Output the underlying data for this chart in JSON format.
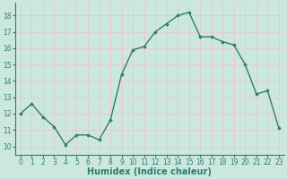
{
  "x": [
    0,
    1,
    2,
    3,
    4,
    5,
    6,
    7,
    8,
    9,
    10,
    11,
    12,
    13,
    14,
    15,
    16,
    17,
    18,
    19,
    20,
    21,
    22,
    23
  ],
  "y": [
    12.0,
    12.6,
    11.8,
    11.2,
    10.1,
    10.7,
    10.7,
    10.4,
    11.6,
    14.4,
    15.9,
    16.1,
    17.0,
    17.5,
    18.0,
    18.2,
    16.7,
    16.7,
    16.4,
    16.2,
    15.0,
    13.2,
    13.4,
    11.1
  ],
  "line_color": "#2e7d6e",
  "marker": "D",
  "marker_size": 1.8,
  "line_width": 1.0,
  "xlabel": "Humidex (Indice chaleur)",
  "xlabel_fontsize": 7,
  "xlabel_fontweight": "bold",
  "ylim": [
    9.5,
    18.8
  ],
  "xlim": [
    -0.5,
    23.5
  ],
  "yticks": [
    10,
    11,
    12,
    13,
    14,
    15,
    16,
    17,
    18
  ],
  "background_color": "#cce8de",
  "grid_color": "#e8c8c8",
  "tick_fontsize": 5.5,
  "fig_bg": "#cce8de",
  "spine_color": "#2e7d6e"
}
